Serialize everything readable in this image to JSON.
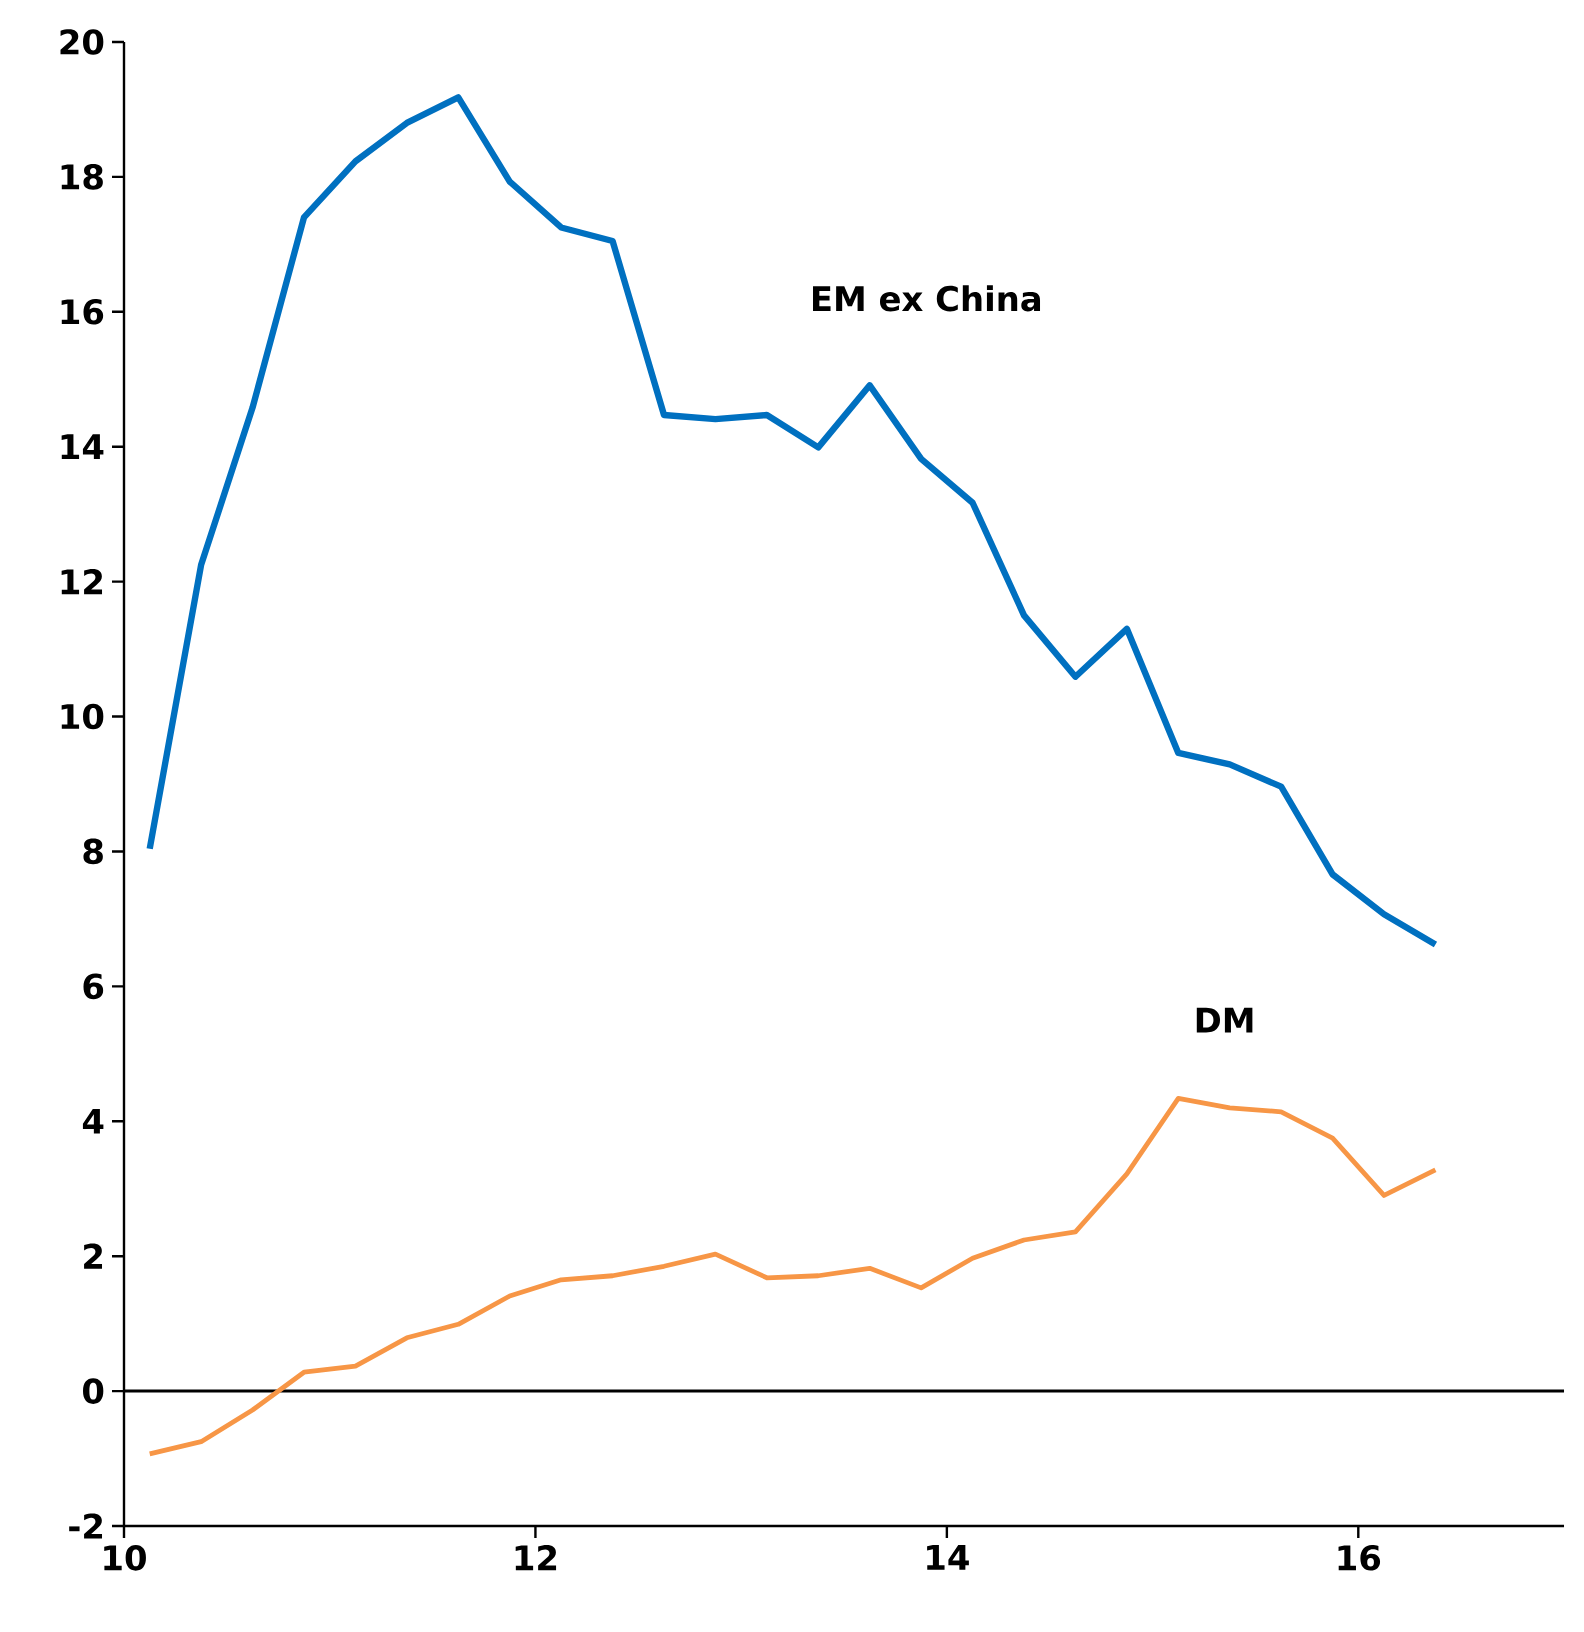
{
  "chart_data": {
    "type": "line",
    "xlim": [
      10,
      17
    ],
    "xticks": [
      10,
      12,
      14,
      16
    ],
    "ylim": [
      -2,
      20
    ],
    "yticks": [
      -2,
      0,
      2,
      4,
      6,
      8,
      10,
      12,
      14,
      16,
      18,
      20
    ],
    "grid": false,
    "legend": false,
    "marker": "none",
    "line_style": "solid",
    "x": [
      10.125,
      10.375,
      10.625,
      10.875,
      11.125,
      11.375,
      11.625,
      11.875,
      12.125,
      12.375,
      12.625,
      12.875,
      13.125,
      13.375,
      13.625,
      13.875,
      14.125,
      14.375,
      14.625,
      14.875,
      15.125,
      15.375,
      15.625,
      15.875,
      16.125,
      16.375
    ],
    "series": [
      {
        "name": "EM ex China",
        "color": "#0070c0",
        "values": [
          8.04,
          12.25,
          14.58,
          17.4,
          18.23,
          18.8,
          19.18,
          17.93,
          17.25,
          17.05,
          14.47,
          14.41,
          14.47,
          13.99,
          14.91,
          13.82,
          13.17,
          11.5,
          10.59,
          11.3,
          9.46,
          9.29,
          8.96,
          7.66,
          7.07,
          6.62
        ]
      },
      {
        "name": "DM",
        "color": "#f79646",
        "values": [
          -0.93,
          -0.75,
          -0.28,
          0.28,
          0.37,
          0.79,
          0.99,
          1.41,
          1.65,
          1.71,
          1.85,
          2.03,
          1.68,
          1.71,
          1.82,
          1.53,
          1.97,
          2.24,
          2.36,
          3.22,
          4.34,
          4.2,
          4.14,
          3.75,
          2.9,
          3.28
        ]
      }
    ],
    "ref_lines": [
      {
        "axis": "y",
        "value": 0,
        "color": "#000000"
      }
    ]
  }
}
